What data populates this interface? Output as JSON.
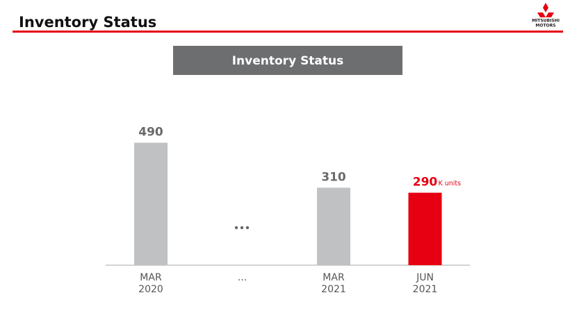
{
  "header": {
    "title": "Inventory Status",
    "logo": [
      "MITSUBISHI",
      "MOTORS"
    ]
  },
  "chart_data": {
    "type": "bar",
    "title": "Inventory Status",
    "categories": [
      "MAR\n2020",
      "...",
      "MAR\n2021",
      "JUN\n2021"
    ],
    "values": [
      490,
      null,
      310,
      290
    ],
    "colors": [
      "#bfc1c3",
      "#bfc1c3",
      "#bfc1c3",
      "#e60012"
    ],
    "label_colors": [
      "#6a6a6a",
      "#6a6a6a",
      "#6a6a6a",
      "#e60012"
    ],
    "unit_label": "K units",
    "ylim": [
      0,
      500
    ]
  }
}
